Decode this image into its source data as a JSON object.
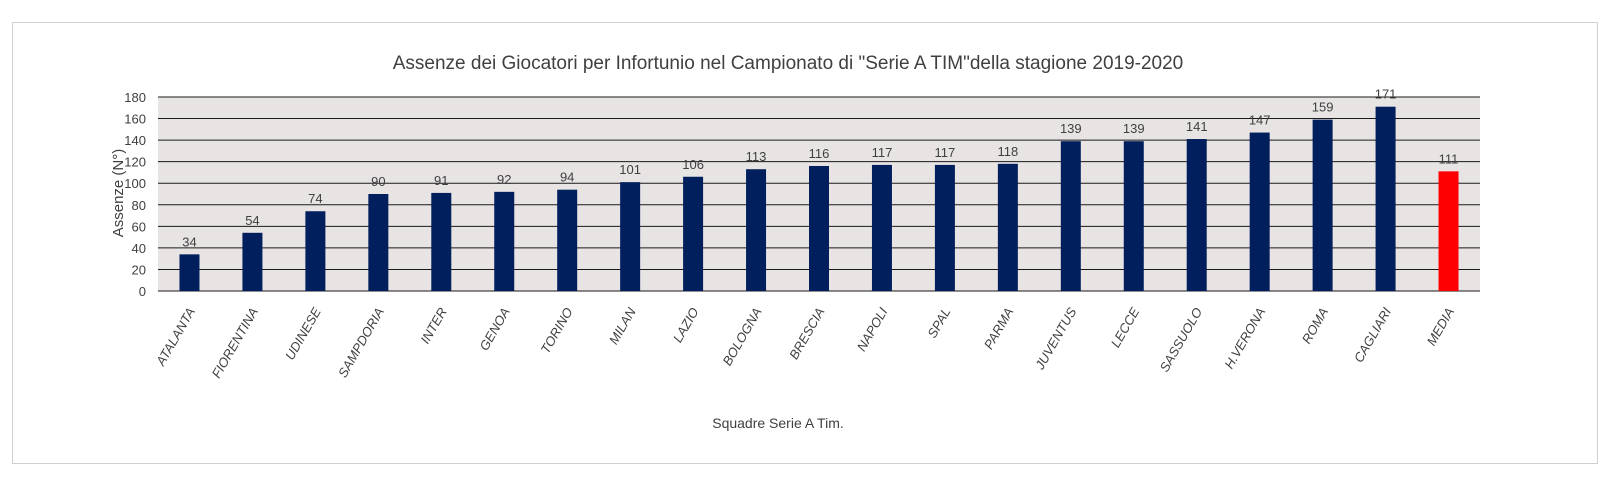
{
  "chart_data": {
    "type": "bar",
    "title": "Assenze dei Giocatori per Infortunio nel Campionato di \"Serie A  TIM\"della stagione 2019-2020",
    "xlabel": "Squadre Serie A Tim.",
    "ylabel": "Assenze (N°)",
    "ylim": [
      0,
      180
    ],
    "yticks": [
      0,
      20,
      40,
      60,
      80,
      100,
      120,
      140,
      160,
      180
    ],
    "grid": true,
    "legend": "none",
    "categories": [
      "ATALANTA",
      "FIORENTINA",
      "UDINESE",
      "SAMPDORIA",
      "INTER",
      "GENOA",
      "TORINO",
      "MILAN",
      "LAZIO",
      "BOLOGNA",
      "BRESCIA",
      "NAPOLI",
      "SPAL",
      "PARMA",
      "JUVENTUS",
      "LECCE",
      "SASSUOLO",
      "H.VERONA",
      "ROMA",
      "CAGLIARI",
      "MEDIA"
    ],
    "values": [
      34,
      54,
      74,
      90,
      91,
      92,
      94,
      101,
      106,
      113,
      116,
      117,
      117,
      118,
      139,
      139,
      141,
      147,
      159,
      171,
      111
    ],
    "colors": {
      "bar": "#001f5c",
      "highlight": "#ff0000",
      "highlight_category": "MEDIA",
      "plot_background": "#e8e4e4",
      "gridline": "#1a1a1a",
      "text": "#404040"
    }
  }
}
